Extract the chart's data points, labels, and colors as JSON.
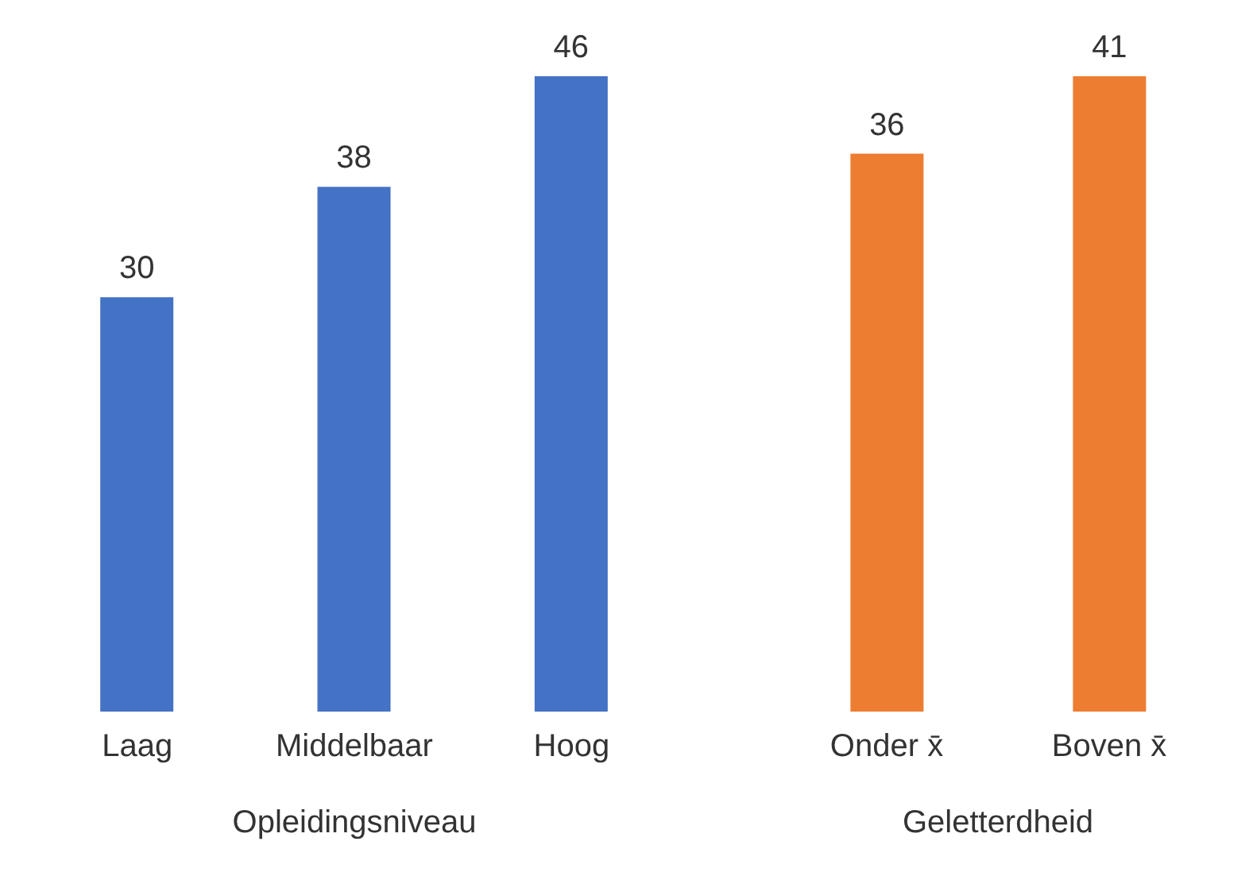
{
  "chart_data": [
    {
      "type": "bar",
      "categories": [
        "Laag",
        "Middelbaar",
        "Hoog"
      ],
      "values": [
        30,
        38,
        46
      ],
      "color": "#4472c4",
      "xlabel": "Opleidingsniveau",
      "data_labels": true
    },
    {
      "type": "bar",
      "categories": [
        "Onder x̄",
        "Boven x̄"
      ],
      "values": [
        36,
        41
      ],
      "color": "#ed7d31",
      "xlabel": "Geletterdheid",
      "data_labels": true
    }
  ]
}
